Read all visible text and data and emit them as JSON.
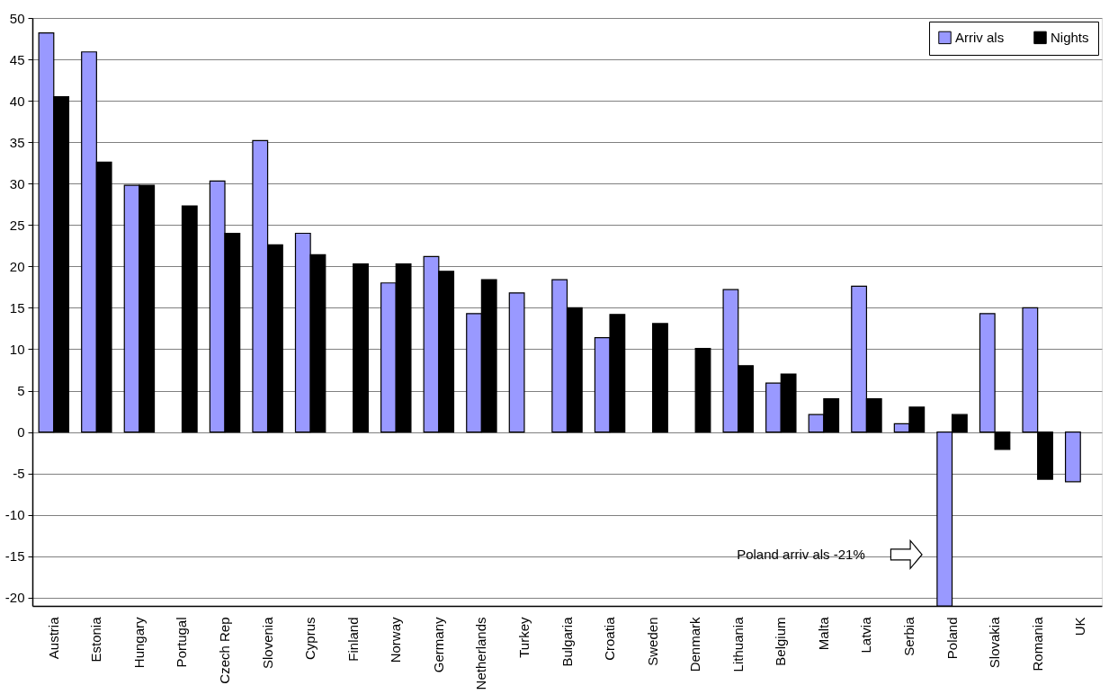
{
  "chart_data": {
    "type": "bar",
    "categories": [
      "Austria",
      "Estonia",
      "Hungary",
      "Portugal",
      "Czech Rep",
      "Slovenia",
      "Cyprus",
      "Finland",
      "Norway",
      "Germany",
      "Netherlands",
      "Turkey",
      "Bulgaria",
      "Croatia",
      "Sweden",
      "Denmark",
      "Lithuania",
      "Belgium",
      "Malta",
      "Latvia",
      "Serbia",
      "Poland",
      "Slovakia",
      "Romania",
      "UK"
    ],
    "series": [
      {
        "name": "Arriv als",
        "color": "#9999ff",
        "values": [
          48.2,
          45.9,
          29.8,
          null,
          30.3,
          35.2,
          24,
          null,
          18,
          21.2,
          14.3,
          16.8,
          18.4,
          11.4,
          null,
          null,
          17.2,
          5.9,
          2.1,
          17.6,
          1,
          -21,
          14.3,
          15,
          -6
        ]
      },
      {
        "name": "Nights",
        "color": "#000000",
        "values": [
          40.5,
          32.6,
          29.8,
          27.3,
          24,
          22.6,
          21.4,
          20.3,
          20.3,
          19.4,
          18.4,
          null,
          15,
          14.2,
          13.1,
          10.1,
          8,
          7,
          4,
          4,
          3,
          2.1,
          -2.1,
          -5.7,
          null
        ]
      }
    ],
    "ylim": [
      -21,
      50
    ],
    "yticks": [
      -20,
      -15,
      -10,
      -5,
      0,
      5,
      10,
      15,
      20,
      25,
      30,
      35,
      40,
      45,
      50
    ],
    "grid": "y",
    "legend": "top right",
    "annotations": [
      "Poland arriv als -21%"
    ]
  }
}
